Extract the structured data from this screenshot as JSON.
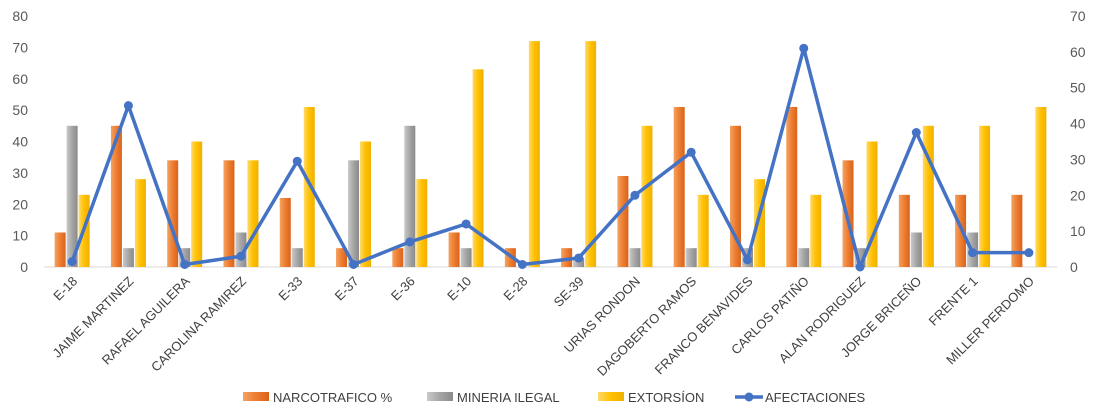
{
  "chart_data": {
    "type": "bar",
    "categories": [
      "E-18",
      "JAIME MARTINEZ",
      "RAFAEL AGUILERA",
      "CAROLINA RAMIREZ",
      "E-33",
      "E-37",
      "E-36",
      "E-10",
      "E-28",
      "SE-39",
      "URIAS RONDON",
      "DAGOBERTO RAMOS",
      "FRANCO BENAVIDES",
      "CARLOS PATIÑO",
      "ALAN RODRIGUEZ",
      "JORGE BRICEÑO",
      "FRENTE 1",
      "MILLER PERDOMO"
    ],
    "series": [
      {
        "name": "NARCOTRAFICO %",
        "type": "bar",
        "axis": "left",
        "color": "#ED7D31",
        "values": [
          11,
          45,
          34,
          34,
          22,
          6,
          6,
          11,
          6,
          6,
          29,
          51,
          45,
          51,
          34,
          23,
          23,
          23
        ]
      },
      {
        "name": "MINERIA ILEGAL",
        "type": "bar",
        "axis": "left",
        "color": "#A5A5A5",
        "values": [
          45,
          6,
          6,
          11,
          6,
          34,
          45,
          6,
          0,
          3,
          6,
          6,
          6,
          6,
          6,
          11,
          11,
          0
        ]
      },
      {
        "name": "EXTORSÍON",
        "type": "bar",
        "axis": "left",
        "color": "#FFC000",
        "values": [
          23,
          28,
          40,
          34,
          51,
          40,
          28,
          63,
          72,
          72,
          45,
          23,
          28,
          23,
          40,
          45,
          45,
          51
        ]
      },
      {
        "name": "AFECTACIONES",
        "type": "line",
        "axis": "right",
        "color": "#4472C4",
        "values": [
          1.5,
          45,
          0.7,
          3,
          29.5,
          0.7,
          7,
          12,
          0.7,
          2.5,
          20,
          32,
          2,
          61,
          0,
          37.5,
          4,
          4
        ]
      }
    ],
    "ylim_left": [
      0,
      80
    ],
    "yticks_left": [
      0,
      10,
      20,
      30,
      40,
      50,
      60,
      70,
      80
    ],
    "ylim_right": [
      0,
      70
    ],
    "yticks_right": [
      0,
      10,
      20,
      30,
      40,
      50,
      60,
      70
    ],
    "grid": false,
    "legend_position": "bottom"
  }
}
